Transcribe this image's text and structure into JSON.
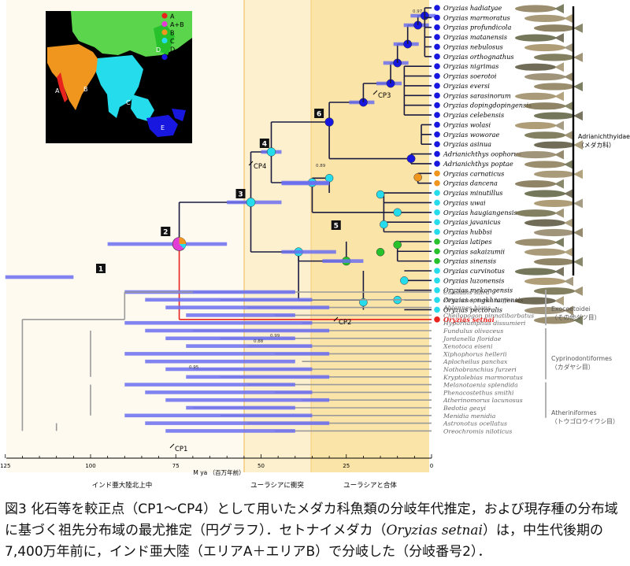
{
  "figure": {
    "legend": [
      {
        "label": "A",
        "color": "#e8231e"
      },
      {
        "label": "A+B",
        "color": "#e33bd6"
      },
      {
        "label": "B",
        "color": "#f0961e"
      },
      {
        "label": "C",
        "color": "#25dcec"
      },
      {
        "label": "D",
        "color": "#27c12c"
      },
      {
        "label": "E",
        "color": "#1717e0"
      }
    ],
    "map_labels": [
      "A",
      "B",
      "C",
      "D",
      "E"
    ],
    "medaka_species": [
      {
        "name": "Oryzias hadiatyae",
        "area": "E"
      },
      {
        "name": "Oryzias marmoratus",
        "area": "E"
      },
      {
        "name": "Oryzias profundicola",
        "area": "E"
      },
      {
        "name": "Oryzias matanensis",
        "area": "E"
      },
      {
        "name": "Oryzias nebulosus",
        "area": "E"
      },
      {
        "name": "Oryzias orthognathus",
        "area": "E"
      },
      {
        "name": "Oryzias nigrimas",
        "area": "E"
      },
      {
        "name": "Oryzias soerotoi",
        "area": "E"
      },
      {
        "name": "Oryzias eversi",
        "area": "E"
      },
      {
        "name": "Oryzias sarasinorum",
        "area": "E"
      },
      {
        "name": "Oryzias dopingdopingensis",
        "area": "E"
      },
      {
        "name": "Oryzias celebensis",
        "area": "E"
      },
      {
        "name": "Oryzias wolasi",
        "area": "E"
      },
      {
        "name": "Oryzias woworae",
        "area": "E"
      },
      {
        "name": "Oryzias asinua",
        "area": "E"
      },
      {
        "name": "Adrianichthys oophorus",
        "area": "E"
      },
      {
        "name": "Adrianichthys poptae",
        "area": "E"
      },
      {
        "name": "Oryzias carnaticus",
        "area": "B"
      },
      {
        "name": "Oryzias dancena",
        "area": "B"
      },
      {
        "name": "Oryzias minutillus",
        "area": "C"
      },
      {
        "name": "Oryzias uwai",
        "area": "C"
      },
      {
        "name": "Oryzias haugiangensis",
        "area": "C"
      },
      {
        "name": "Oryzias javanicus",
        "area": "C"
      },
      {
        "name": "Oryzias hubbsi",
        "area": "C"
      },
      {
        "name": "Oryzias latipes",
        "area": "D"
      },
      {
        "name": "Oryzias sakaizumii",
        "area": "D"
      },
      {
        "name": "Oryzias sinensis",
        "area": "D"
      },
      {
        "name": "Oryzias curvinotus",
        "area": "C"
      },
      {
        "name": "Oryzias luzonensis",
        "area": "C"
      },
      {
        "name": "Oryzias mekongensis",
        "area": "C"
      },
      {
        "name": "Oryzias songkhramensis",
        "area": "C"
      },
      {
        "name": "Oryzias pectoralis",
        "area": "C"
      },
      {
        "name": "Oryzias setnai",
        "area": "A"
      }
    ],
    "outgroup_species": [
      "Cololabis saira",
      "Zenarchopterus buffonis",
      "Ablennes hians",
      "Cheilopogon pinnatibarbatus",
      "Hyporhamphus dissumieri",
      "Fundulus olivaceus",
      "Jordanella floridae",
      "Xenotoca eiseni",
      "Xiphophorus hellerii",
      "Aplocheilus panchax",
      "Nothobranchius furzeri",
      "Kryptolebias marmoratus",
      "Melanotaenia splendida",
      "Phenacostethus smithi",
      "Atherinomorus lacunosus",
      "Bedotia geayi",
      "Menidia menidia",
      "Astronotus ocellatus",
      "Oreochromis niloticus"
    ],
    "groups": [
      {
        "name": "Adrianichthyidae",
        "sub": "（メダカ科）"
      },
      {
        "name": "Exocoetoidei",
        "sub": "（その他ダツ目）"
      },
      {
        "name": "Cyprinodontiformes",
        "sub": "（カダヤシ目）"
      },
      {
        "name": "Atheriniformes",
        "sub": "（トウゴロウイワシ目）"
      }
    ],
    "node_numbers": [
      "1",
      "2",
      "3",
      "4",
      "5",
      "6"
    ],
    "calibrations": [
      "CP1",
      "CP2",
      "CP3",
      "CP4"
    ],
    "support_values": [
      "0.97",
      "0.89",
      "0.88",
      "0.99",
      "0.95"
    ],
    "axis": {
      "ticks": [
        "125",
        "100",
        "75",
        "50",
        "25",
        "0"
      ],
      "label": "M ya （百万年前）"
    },
    "periods": [
      "インド亜大陸北上中",
      "ユーラシアに衝突",
      "ユーラシアと合体"
    ]
  },
  "caption": {
    "text_1": "図3 化石等を較正点（CP1〜CP4）として用いたメダカ科魚類の分岐年代推定，および現存種の分布域に基づく祖先分布域の最尤推定（円グラフ）．セトナイメダカ（",
    "species": "Oryzias setnai",
    "text_2": "）は，中生代後期の7,400万年前に，インド亜大陸（エリアA＋エリアB）で分岐した（分岐番号2）．"
  }
}
